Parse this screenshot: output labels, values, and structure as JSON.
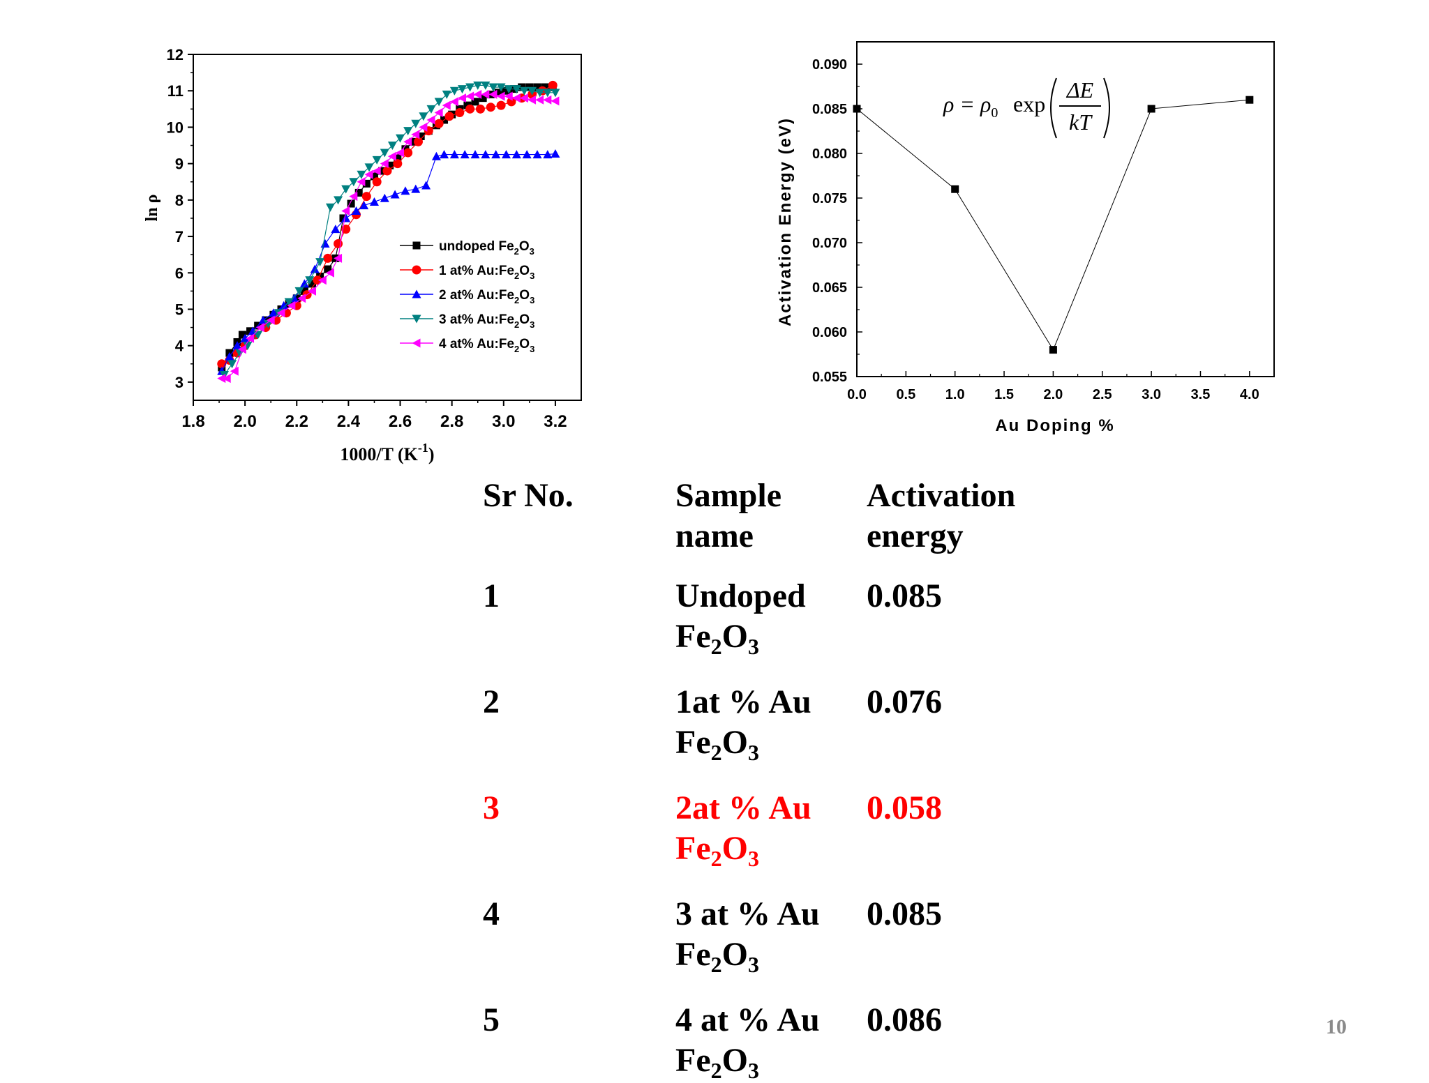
{
  "chart_data": [
    {
      "type": "scatter",
      "title": "",
      "xlabel": "1000/T (K",
      "xlabel_sup": "-1",
      "xlabel_close": ")",
      "ylabel": "ln ρ",
      "xlim": [
        1.8,
        3.3
      ],
      "ylim": [
        2.5,
        12
      ],
      "xticks": [
        "1.8",
        "2.0",
        "2.2",
        "2.4",
        "2.6",
        "2.8",
        "3.0",
        "3.2"
      ],
      "yticks": [
        "3",
        "4",
        "5",
        "6",
        "7",
        "8",
        "9",
        "10",
        "11",
        "12"
      ],
      "series": [
        {
          "name": "undoped Fe",
          "sub1": "2",
          "mid": "O",
          "sub2": "3",
          "color": "#000000",
          "marker": "square",
          "x": [
            1.91,
            1.94,
            1.97,
            1.99,
            2.02,
            2.05,
            2.08,
            2.11,
            2.14,
            2.17,
            2.2,
            2.23,
            2.26,
            2.29,
            2.32,
            2.35,
            2.38,
            2.41,
            2.44,
            2.47,
            2.5,
            2.53,
            2.56,
            2.59,
            2.62,
            2.65,
            2.68,
            2.71,
            2.74,
            2.77,
            2.8,
            2.83,
            2.86,
            2.89,
            2.92,
            2.95,
            2.98,
            3.01,
            3.04,
            3.07,
            3.1,
            3.13,
            3.16,
            3.19
          ],
          "y": [
            3.4,
            3.8,
            4.1,
            4.3,
            4.4,
            4.55,
            4.7,
            4.85,
            5.0,
            5.15,
            5.3,
            5.5,
            5.7,
            5.9,
            6.1,
            6.4,
            7.5,
            7.9,
            8.2,
            8.45,
            8.65,
            8.8,
            8.95,
            9.15,
            9.4,
            9.6,
            9.75,
            9.9,
            10.05,
            10.2,
            10.35,
            10.5,
            10.6,
            10.7,
            10.8,
            10.9,
            10.95,
            11.0,
            11.05,
            11.1,
            11.1,
            11.1,
            11.1,
            11.1
          ]
        },
        {
          "name": "1 at% Au:Fe",
          "sub1": "2",
          "mid": "O",
          "sub2": "3",
          "color": "#ff0000",
          "marker": "circle",
          "x": [
            1.91,
            1.94,
            1.97,
            2.0,
            2.04,
            2.08,
            2.12,
            2.16,
            2.2,
            2.24,
            2.28,
            2.32,
            2.36,
            2.39,
            2.43,
            2.47,
            2.51,
            2.55,
            2.59,
            2.63,
            2.67,
            2.71,
            2.75,
            2.79,
            2.83,
            2.87,
            2.91,
            2.95,
            2.99,
            3.03,
            3.07,
            3.11,
            3.15,
            3.19
          ],
          "y": [
            3.5,
            3.6,
            3.8,
            4.0,
            4.3,
            4.5,
            4.7,
            4.9,
            5.1,
            5.4,
            5.8,
            6.4,
            6.8,
            7.2,
            7.6,
            8.1,
            8.5,
            8.8,
            9.0,
            9.3,
            9.6,
            9.9,
            10.1,
            10.3,
            10.4,
            10.5,
            10.5,
            10.55,
            10.6,
            10.7,
            10.8,
            10.9,
            11.0,
            11.15
          ]
        },
        {
          "name": "2 at% Au:Fe",
          "sub1": "2",
          "mid": "O",
          "sub2": "3",
          "color": "#0000ff",
          "marker": "triangle-up",
          "x": [
            1.91,
            1.94,
            1.97,
            2.0,
            2.03,
            2.07,
            2.11,
            2.15,
            2.19,
            2.23,
            2.27,
            2.31,
            2.35,
            2.39,
            2.43,
            2.46,
            2.5,
            2.54,
            2.58,
            2.62,
            2.66,
            2.7,
            2.74,
            2.77,
            2.81,
            2.85,
            2.89,
            2.93,
            2.97,
            3.01,
            3.05,
            3.09,
            3.13,
            3.17,
            3.2
          ],
          "y": [
            3.3,
            3.7,
            4.0,
            4.2,
            4.4,
            4.7,
            4.9,
            5.1,
            5.3,
            5.7,
            6.1,
            6.8,
            7.2,
            7.5,
            7.7,
            7.85,
            7.95,
            8.05,
            8.15,
            8.25,
            8.3,
            8.4,
            9.2,
            9.25,
            9.25,
            9.25,
            9.25,
            9.25,
            9.25,
            9.25,
            9.25,
            9.25,
            9.25,
            9.25,
            9.27
          ]
        },
        {
          "name": "3 at% Au:Fe",
          "sub1": "2",
          "mid": "O",
          "sub2": "3",
          "color": "#008080",
          "marker": "triangle-down",
          "x": [
            1.92,
            1.95,
            1.98,
            2.01,
            2.05,
            2.09,
            2.13,
            2.17,
            2.21,
            2.25,
            2.29,
            2.33,
            2.36,
            2.39,
            2.42,
            2.45,
            2.48,
            2.51,
            2.54,
            2.57,
            2.6,
            2.63,
            2.66,
            2.69,
            2.72,
            2.75,
            2.78,
            2.81,
            2.84,
            2.87,
            2.9,
            2.93,
            2.96,
            2.99,
            3.02,
            3.05,
            3.08,
            3.11,
            3.14,
            3.17,
            3.2
          ],
          "y": [
            3.2,
            3.5,
            3.8,
            4.0,
            4.3,
            4.6,
            4.9,
            5.2,
            5.5,
            5.8,
            6.3,
            7.8,
            8.0,
            8.3,
            8.5,
            8.7,
            8.9,
            9.1,
            9.3,
            9.5,
            9.7,
            9.9,
            10.1,
            10.3,
            10.5,
            10.7,
            10.9,
            11.0,
            11.05,
            11.1,
            11.15,
            11.15,
            11.1,
            11.1,
            11.05,
            11.05,
            11.0,
            11.0,
            10.95,
            10.95,
            10.95
          ]
        },
        {
          "name": "4 at% Au:Fe",
          "sub1": "2",
          "mid": "O",
          "sub2": "3",
          "color": "#ff00ff",
          "marker": "triangle-left",
          "x": [
            1.91,
            1.93,
            1.96,
            1.99,
            2.02,
            2.06,
            2.1,
            2.14,
            2.18,
            2.22,
            2.26,
            2.3,
            2.33,
            2.36,
            2.39,
            2.42,
            2.45,
            2.48,
            2.51,
            2.54,
            2.57,
            2.6,
            2.63,
            2.66,
            2.69,
            2.72,
            2.75,
            2.78,
            2.81,
            2.84,
            2.87,
            2.9,
            2.93,
            2.96,
            2.99,
            3.02,
            3.05,
            3.08,
            3.11,
            3.14,
            3.17,
            3.2
          ],
          "y": [
            3.1,
            3.1,
            3.3,
            3.9,
            4.2,
            4.5,
            4.7,
            4.9,
            5.1,
            5.3,
            5.5,
            5.8,
            6.0,
            6.4,
            7.7,
            8.1,
            8.5,
            8.7,
            8.8,
            9.0,
            9.2,
            9.3,
            9.6,
            9.8,
            10.0,
            10.2,
            10.4,
            10.6,
            10.7,
            10.8,
            10.85,
            10.9,
            10.9,
            10.9,
            10.85,
            10.85,
            10.8,
            10.8,
            10.75,
            10.75,
            10.75,
            10.72
          ]
        }
      ]
    },
    {
      "type": "line",
      "title": "",
      "xlabel": "Au Doping %",
      "ylabel": "Activation Energy (eV)",
      "xlim": [
        0,
        4.25
      ],
      "ylim": [
        0.055,
        0.0925
      ],
      "xticks": [
        "0.0",
        "0.5",
        "1.0",
        "1.5",
        "2.0",
        "2.5",
        "3.0",
        "3.5",
        "4.0"
      ],
      "yticks": [
        "0.055",
        "0.060",
        "0.065",
        "0.070",
        "0.075",
        "0.080",
        "0.085",
        "0.090"
      ],
      "series": [
        {
          "name": "Activation Energy",
          "color": "#000000",
          "marker": "square",
          "x": [
            0,
            1,
            2,
            3,
            4
          ],
          "y": [
            0.085,
            0.076,
            0.058,
            0.085,
            0.086
          ]
        }
      ],
      "formula": {
        "lhs": "ρ = ρ",
        "lhs_sub": "0",
        "func": "exp",
        "num": "ΔE",
        "den": "kT"
      }
    }
  ],
  "table": {
    "header": {
      "c1": "Sr No.",
      "c2a": "Sample",
      "c2b": "name",
      "c3a": "Activation",
      "c3b": "energy"
    },
    "rows": [
      {
        "no": "1",
        "line1": "Undoped",
        "line2_a": "Fe",
        "line2_s1": "2",
        "line2_b": "O",
        "line2_s2": "3",
        "energy": "0.085",
        "highlight": false
      },
      {
        "no": "2",
        "line1": "1at % Au",
        "line2_a": "Fe",
        "line2_s1": "2",
        "line2_b": "O",
        "line2_s2": "3",
        "energy": "0.076",
        "highlight": false
      },
      {
        "no": "3",
        "line1": "2at % Au",
        "line2_a": "Fe",
        "line2_s1": "2",
        "line2_b": "O",
        "line2_s2": "3",
        "energy": "0.058",
        "highlight": true
      },
      {
        "no": "4",
        "line1": "3 at % Au",
        "line2_a": "Fe",
        "line2_s1": "2",
        "line2_b": "O",
        "line2_s2": "3",
        "energy": "0.085",
        "highlight": false
      },
      {
        "no": "5",
        "line1": "4 at % Au",
        "line2_a": "Fe",
        "line2_s1": "2",
        "line2_b": "O",
        "line2_s2": "3",
        "energy": "0.086",
        "highlight": false
      }
    ],
    "highlight_color": "#ff0000"
  },
  "page_number": "10"
}
